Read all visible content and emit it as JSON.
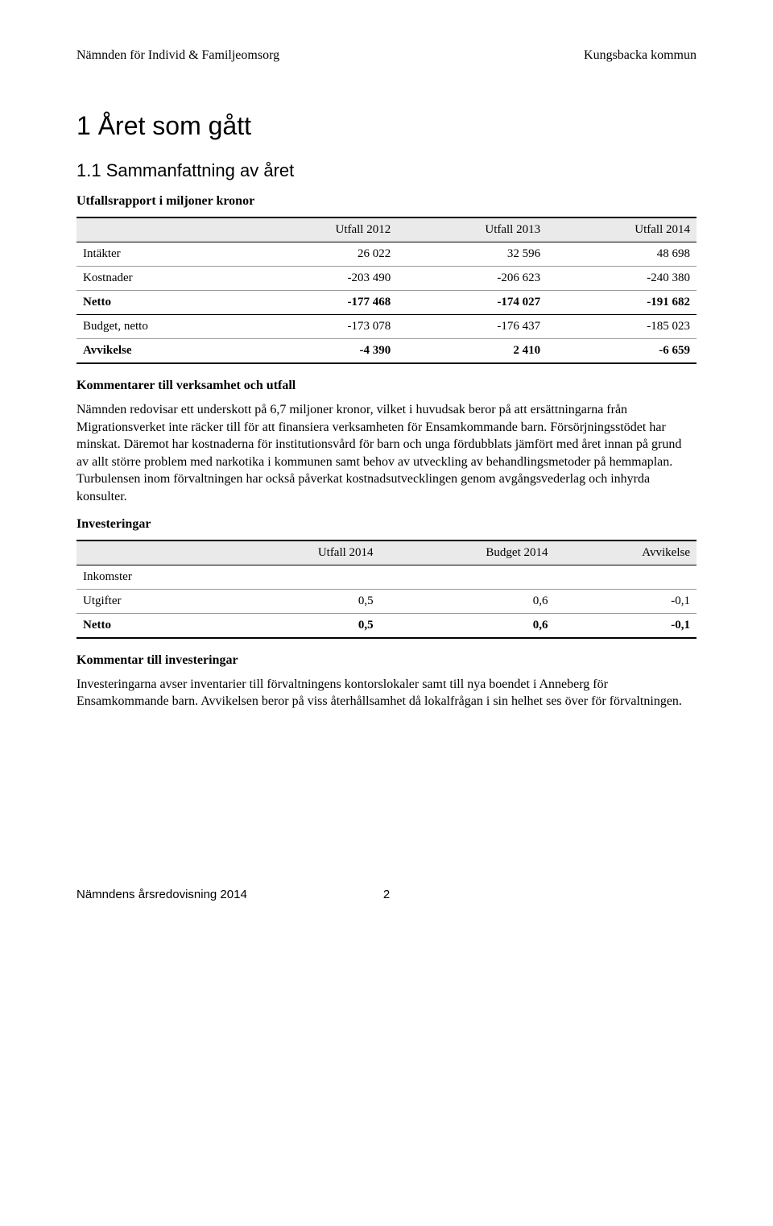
{
  "header": {
    "left": "Nämnden för Individ & Familjeomsorg",
    "right": "Kungsbacka kommun"
  },
  "h1": "1 Året som gått",
  "h2": "1.1 Sammanfattning av året",
  "utfall_section_title": "Utfallsrapport i miljoner kronor",
  "utfall_table": {
    "columns": [
      "",
      "Utfall 2012",
      "Utfall 2013",
      "Utfall 2014"
    ],
    "rows": [
      {
        "label": "Intäkter",
        "c1": "26 022",
        "c2": "32 596",
        "c3": "48 698",
        "bold": false
      },
      {
        "label": "Kostnader",
        "c1": "-203 490",
        "c2": "-206 623",
        "c3": "-240 380",
        "bold": false
      },
      {
        "label": "Netto",
        "c1": "-177 468",
        "c2": "-174 027",
        "c3": "-191 682",
        "bold": true
      },
      {
        "label": "Budget, netto",
        "c1": "-173 078",
        "c2": "-176 437",
        "c3": "-185 023",
        "bold": false
      },
      {
        "label": "Avvikelse",
        "c1": "-4 390",
        "c2": "2 410",
        "c3": "-6 659",
        "bold": true
      }
    ]
  },
  "kommentarer_title": "Kommentarer till verksamhet och utfall",
  "kommentarer_body": "Nämnden redovisar ett underskott på 6,7 miljoner kronor, vilket i huvudsak beror på att ersättningarna från Migrationsverket inte räcker till för att finansiera verksamheten för Ensamkommande barn. Försörjningsstödet har minskat. Däremot har kostnaderna för institutionsvård för barn och unga fördubblats jämfört med året innan på grund av allt större problem med narkotika i kommunen samt behov av utveckling av behandlingsmetoder på hemmaplan. Turbulensen inom förvaltningen har också påverkat kostnadsutvecklingen genom avgångsvederlag och inhyrda konsulter.",
  "investeringar_title": "Investeringar",
  "invest_table": {
    "columns": [
      "",
      "Utfall 2014",
      "Budget 2014",
      "Avvikelse"
    ],
    "rows": [
      {
        "label": "Inkomster",
        "c1": "",
        "c2": "",
        "c3": "",
        "bold": false
      },
      {
        "label": "Utgifter",
        "c1": "0,5",
        "c2": "0,6",
        "c3": "-0,1",
        "bold": false
      },
      {
        "label": "Netto",
        "c1": "0,5",
        "c2": "0,6",
        "c3": "-0,1",
        "bold": true
      }
    ]
  },
  "kommentar_invest_title": "Kommentar till investeringar",
  "kommentar_invest_body": "Investeringarna avser inventarier till förvaltningens kontorslokaler samt till nya boendet i Anneberg för Ensamkommande barn. Avvikelsen beror på viss återhållsamhet då lokalfrågan i sin helhet ses över för förvaltningen.",
  "footer": {
    "left": "Nämndens årsredovisning 2014",
    "page": "2"
  }
}
